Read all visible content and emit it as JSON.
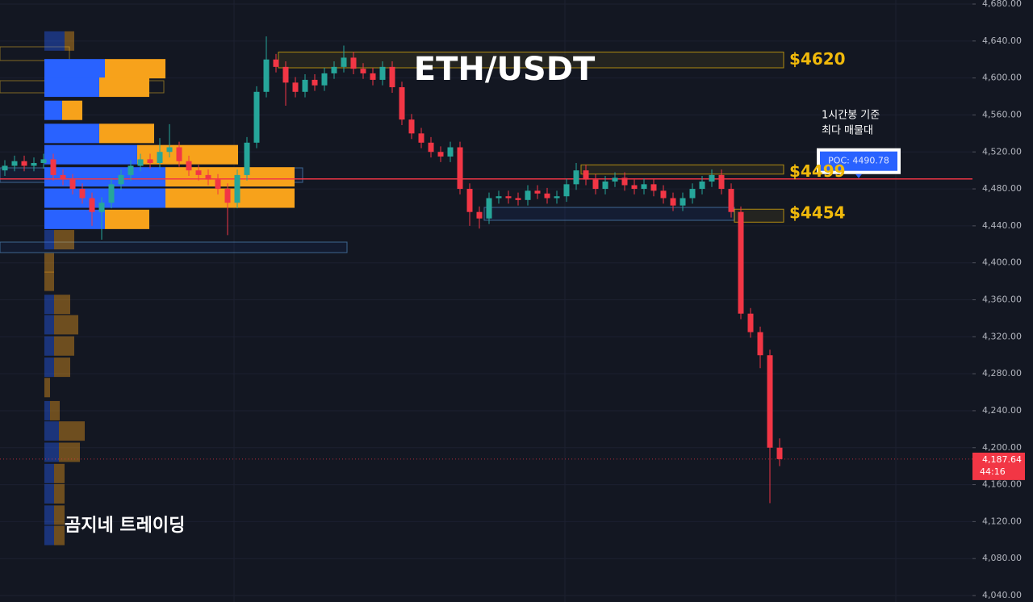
{
  "chart_data": {
    "type": "candlestick",
    "title": "ETH/USDT",
    "watermark": "곰지네 트레이딩",
    "note": [
      "1시간봉 기준",
      "최다 매물대"
    ],
    "ylim": [
      4040,
      4680
    ],
    "yticks": [
      {
        "value": 4040,
        "label": "4,040.00"
      },
      {
        "value": 4080,
        "label": "4,080.00"
      },
      {
        "value": 4120,
        "label": "4,120.00"
      },
      {
        "value": 4160,
        "label": "4,160.00"
      },
      {
        "value": 4200,
        "label": "4,200.00"
      },
      {
        "value": 4240,
        "label": "4,240.00"
      },
      {
        "value": 4280,
        "label": "4,280.00"
      },
      {
        "value": 4320,
        "label": "4,320.00"
      },
      {
        "value": 4360,
        "label": "4,360.00"
      },
      {
        "value": 4400,
        "label": "4,400.00"
      },
      {
        "value": 4440,
        "label": "4,440.00"
      },
      {
        "value": 4480,
        "label": "4,480.00"
      },
      {
        "value": 4520,
        "label": "4,520.00"
      },
      {
        "value": 4560,
        "label": "4,560.00"
      },
      {
        "value": 4600,
        "label": "4,600.00"
      },
      {
        "value": 4640,
        "label": "4,640.00"
      },
      {
        "value": 4680,
        "label": "4,680.00"
      }
    ],
    "up_color": "#26a69a",
    "down_color": "#f23645",
    "open": [
      4500,
      4505,
      4510,
      4505,
      4508,
      4512,
      4495,
      4490,
      4480,
      4470,
      4455,
      4465,
      4485,
      4495,
      4505,
      4512,
      4508,
      4520,
      4525,
      4510,
      4500,
      4495,
      4490,
      4480,
      4465,
      4495,
      4530,
      4585,
      4620,
      4612,
      4595,
      4585,
      4598,
      4592,
      4605,
      4612,
      4622,
      4610,
      4605,
      4598,
      4612,
      4590,
      4555,
      4540,
      4530,
      4520,
      4515,
      4525,
      4480,
      4455,
      4448,
      4470,
      4472,
      4470,
      4468,
      4478,
      4475,
      4470,
      4472,
      4485,
      4500,
      4490,
      4480,
      4488,
      4492,
      4484,
      4480,
      4485,
      4478,
      4470,
      4462,
      4470,
      4480,
      4488,
      4495,
      4480,
      4455,
      4345,
      4325,
      4300,
      4200
    ],
    "high": [
      4511,
      4516,
      4516,
      4514,
      4518,
      4518,
      4501,
      4496,
      4486,
      4476,
      4471,
      4491,
      4501,
      4511,
      4518,
      4518,
      4535,
      4550,
      4531,
      4516,
      4506,
      4501,
      4496,
      4486,
      4501,
      4536,
      4591,
      4645,
      4626,
      4618,
      4601,
      4604,
      4604,
      4611,
      4618,
      4635,
      4628,
      4616,
      4611,
      4618,
      4618,
      4596,
      4561,
      4546,
      4536,
      4526,
      4531,
      4531,
      4486,
      4461,
      4476,
      4478,
      4478,
      4476,
      4484,
      4484,
      4481,
      4478,
      4491,
      4508,
      4506,
      4496,
      4494,
      4498,
      4498,
      4490,
      4491,
      4491,
      4484,
      4476,
      4476,
      4486,
      4494,
      4501,
      4501,
      4486,
      4461,
      4351,
      4331,
      4306,
      4210
    ],
    "low": [
      4494,
      4499,
      4499,
      4499,
      4502,
      4489,
      4484,
      4474,
      4464,
      4440,
      4425,
      4459,
      4479,
      4489,
      4499,
      4502,
      4502,
      4514,
      4504,
      4494,
      4489,
      4484,
      4474,
      4430,
      4459,
      4489,
      4524,
      4579,
      4606,
      4570,
      4579,
      4579,
      4586,
      4586,
      4599,
      4606,
      4604,
      4599,
      4592,
      4592,
      4584,
      4549,
      4534,
      4524,
      4514,
      4509,
      4509,
      4474,
      4440,
      4437,
      4442,
      4464,
      4464,
      4462,
      4462,
      4469,
      4464,
      4464,
      4466,
      4479,
      4484,
      4474,
      4474,
      4482,
      4478,
      4474,
      4474,
      4472,
      4464,
      4456,
      4456,
      4464,
      4474,
      4482,
      4474,
      4449,
      4339,
      4319,
      4286,
      4140,
      4180
    ],
    "close": [
      4505,
      4510,
      4505,
      4508,
      4512,
      4495,
      4490,
      4480,
      4470,
      4455,
      4465,
      4485,
      4495,
      4505,
      4512,
      4508,
      4520,
      4525,
      4510,
      4500,
      4495,
      4490,
      4480,
      4465,
      4495,
      4530,
      4585,
      4620,
      4612,
      4595,
      4585,
      4598,
      4592,
      4605,
      4612,
      4622,
      4610,
      4605,
      4598,
      4612,
      4590,
      4555,
      4540,
      4530,
      4520,
      4515,
      4525,
      4480,
      4455,
      4448,
      4470,
      4472,
      4470,
      4468,
      4478,
      4475,
      4470,
      4472,
      4485,
      4500,
      4490,
      4480,
      4488,
      4492,
      4484,
      4480,
      4485,
      4478,
      4470,
      4462,
      4470,
      4480,
      4488,
      4495,
      4480,
      4455,
      4345,
      4325,
      4300,
      4200,
      4187.64
    ],
    "last_price": {
      "value": 4187.64,
      "label": "4,187.64"
    },
    "countdown": "44:16",
    "poc": {
      "value": 4490.78,
      "label": "POC: 4490.78",
      "color": "#f23645"
    },
    "levels": [
      {
        "value": 4620,
        "label": "$4620",
        "range": [
          4611,
          4628
        ]
      },
      {
        "value": 4499,
        "label": "$4499",
        "range": [
          4496,
          4506
        ]
      },
      {
        "value": 4454,
        "label": "$4454",
        "range": [
          4444,
          4458
        ]
      }
    ],
    "level_color": "#f0b90b",
    "volume_profile": {
      "buy_color": "#2962ff",
      "sell_color": "#f7a21b",
      "value_area": [
        4447,
        4610
      ],
      "prices": [
        4640,
        4610,
        4590,
        4565,
        4540,
        4517,
        4493,
        4470,
        4447,
        4425,
        4400,
        4380,
        4355,
        4333,
        4310,
        4287,
        4265,
        4240,
        4218,
        4195,
        4172,
        4150,
        4127,
        4105
      ],
      "buy": [
        25,
        75,
        68,
        22,
        68,
        115,
        150,
        150,
        75,
        12,
        0,
        0,
        12,
        12,
        12,
        12,
        0,
        7,
        18,
        18,
        12,
        12,
        12,
        12
      ],
      "sell": [
        12,
        75,
        62,
        25,
        68,
        125,
        160,
        160,
        55,
        25,
        12,
        12,
        20,
        30,
        25,
        20,
        7,
        12,
        32,
        26,
        13,
        13,
        13,
        13
      ]
    }
  }
}
